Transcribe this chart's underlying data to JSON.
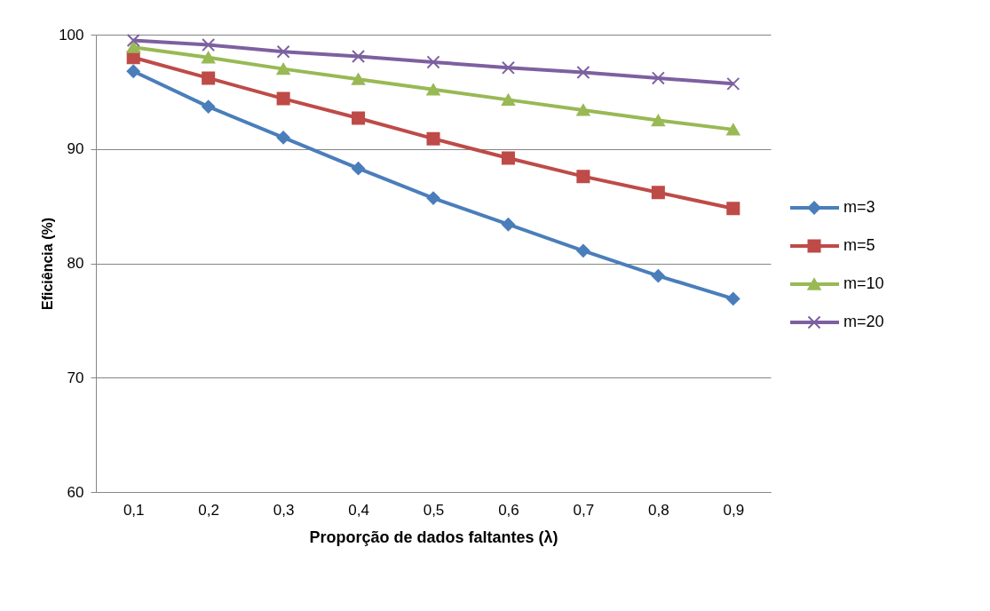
{
  "chart_data": {
    "type": "line",
    "xlabel": "Proporção de dados faltantes (λ)",
    "ylabel": "Eficiência (%)",
    "categories": [
      "0,1",
      "0,2",
      "0,3",
      "0,4",
      "0,5",
      "0,6",
      "0,7",
      "0,8",
      "0,9"
    ],
    "series": [
      {
        "name": "m=3",
        "color": "#4a7ebb",
        "marker": "diamond",
        "values": [
          96.8,
          93.7,
          91.0,
          88.3,
          85.7,
          83.4,
          81.1,
          78.9,
          76.9
        ]
      },
      {
        "name": "m=5",
        "color": "#be4b48",
        "marker": "square",
        "values": [
          98.0,
          96.2,
          94.4,
          92.7,
          90.9,
          89.2,
          87.6,
          86.2,
          84.8
        ]
      },
      {
        "name": "m=10",
        "color": "#98b954",
        "marker": "triangle",
        "values": [
          98.9,
          98.0,
          97.0,
          96.1,
          95.2,
          94.3,
          93.4,
          92.5,
          91.7
        ]
      },
      {
        "name": "m=20",
        "color": "#7d60a0",
        "marker": "cross",
        "values": [
          99.5,
          99.1,
          98.5,
          98.1,
          97.6,
          97.1,
          96.7,
          96.2,
          95.7
        ]
      }
    ],
    "ylim": [
      60,
      100
    ],
    "yticks": [
      60,
      70,
      80,
      90,
      100
    ],
    "grid": "y",
    "legend": "right",
    "line_style": "solid"
  }
}
